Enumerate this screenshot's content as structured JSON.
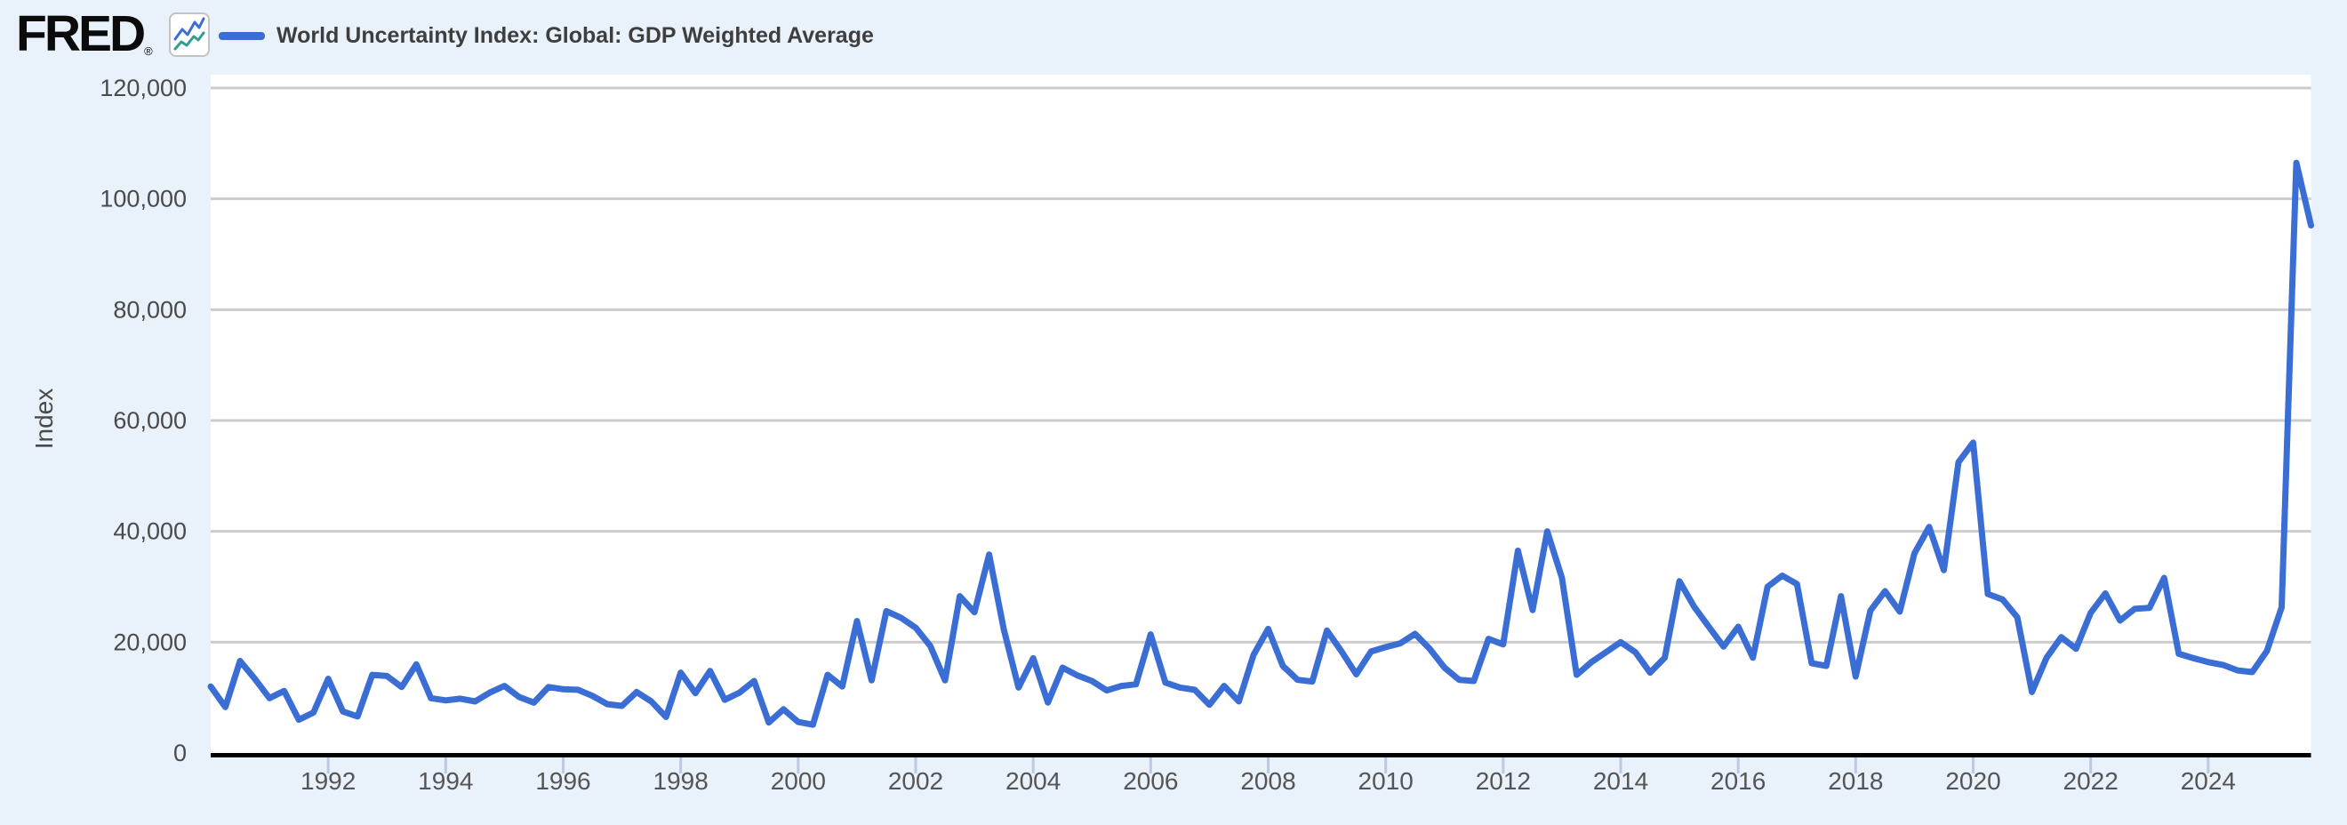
{
  "header": {
    "logo_text": "FRED",
    "registered_mark": "®"
  },
  "legend": {
    "label": "World Uncertainty Index: Global: GDP Weighted Average"
  },
  "colors": {
    "background": "#e9f1fb",
    "plot_background": "#ffffff",
    "gridline": "#cccccc",
    "axis_line": "#000000",
    "tick_mark": "#bdc9e2",
    "axis_label_text": "#4a4a4a",
    "x_label_text": "#555555",
    "legend_text": "#3e3e3e",
    "series_line": "#3b6ed4",
    "logo_black": "#0b0b0b",
    "logo_icon_blue": "#3b6ed4",
    "logo_icon_teal": "#2f9e8f"
  },
  "chart_data": {
    "type": "line",
    "title": "World Uncertainty Index: Global: GDP Weighted Average",
    "ylabel": "Index",
    "xlabel": "",
    "frequency": "quarterly",
    "x_start_period": "1990 Q1",
    "x_end_period": "2025 Q4",
    "ylim": [
      0,
      120000
    ],
    "grid": "horizontal-only",
    "legend_position": "top-left",
    "y_ticks": [
      {
        "value": 0,
        "label": "0"
      },
      {
        "value": 20000,
        "label": "20,000"
      },
      {
        "value": 40000,
        "label": "40,000"
      },
      {
        "value": 60000,
        "label": "60,000"
      },
      {
        "value": 80000,
        "label": "80,000"
      },
      {
        "value": 100000,
        "label": "100,000"
      },
      {
        "value": 120000,
        "label": "120,000"
      }
    ],
    "x_tick_years": [
      1992,
      1994,
      1996,
      1998,
      2000,
      2002,
      2004,
      2006,
      2008,
      2010,
      2012,
      2014,
      2016,
      2018,
      2020,
      2022,
      2024
    ],
    "x_start_year": 1990,
    "x_step_years": 0.25,
    "values": [
      12000,
      8300,
      16600,
      13400,
      9900,
      11200,
      6000,
      7300,
      13400,
      7500,
      6600,
      14100,
      13900,
      11900,
      16000,
      9900,
      9500,
      9800,
      9300,
      10900,
      12100,
      10100,
      9100,
      11900,
      11500,
      11400,
      10300,
      8800,
      8500,
      11000,
      9300,
      6500,
      14500,
      10800,
      14800,
      9600,
      10900,
      13000,
      5500,
      7900,
      5600,
      5100,
      14100,
      12000,
      23800,
      13100,
      25600,
      24400,
      22600,
      19300,
      13100,
      28300,
      25400,
      35800,
      22300,
      11800,
      17100,
      9100,
      15400,
      14000,
      13000,
      11300,
      12100,
      12400,
      21400,
      12700,
      11800,
      11400,
      8700,
      12100,
      9300,
      17700,
      22400,
      15700,
      13200,
      12900,
      22100,
      18300,
      14200,
      18300,
      19100,
      19800,
      21500,
      18800,
      15400,
      13200,
      13000,
      20600,
      19600,
      36500,
      25800,
      40000,
      31600,
      14100,
      16400,
      18200,
      20000,
      18200,
      14500,
      17200,
      31000,
      26400,
      22800,
      19200,
      22800,
      17200,
      30000,
      32000,
      30500,
      16200,
      15700,
      28300,
      13800,
      25700,
      29200,
      25500,
      36000,
      40800,
      33000,
      52500,
      56000,
      28700,
      27700,
      24500,
      11000,
      17200,
      20900,
      18800,
      25300,
      28800,
      23900,
      26000,
      26200,
      31600,
      17900,
      17100,
      16400,
      15900,
      14900,
      14600,
      18400,
      26300,
      106500,
      95200
    ]
  }
}
